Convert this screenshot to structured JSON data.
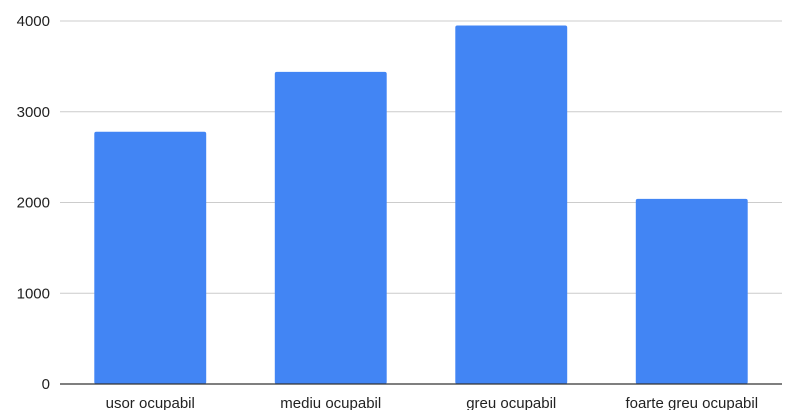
{
  "chart_data": {
    "type": "bar",
    "categories": [
      "usor ocupabil",
      "mediu ocupabil",
      "greu ocupabil",
      "foarte greu ocupabil"
    ],
    "values": [
      2780,
      3440,
      3950,
      2040
    ],
    "ylim": [
      0,
      4000
    ],
    "yticks": [
      0,
      1000,
      2000,
      3000,
      4000
    ],
    "grid": true,
    "legend": "none",
    "bar_color": "#4285f4",
    "grid_color": "#cccccc",
    "axis_color": "#333333"
  }
}
